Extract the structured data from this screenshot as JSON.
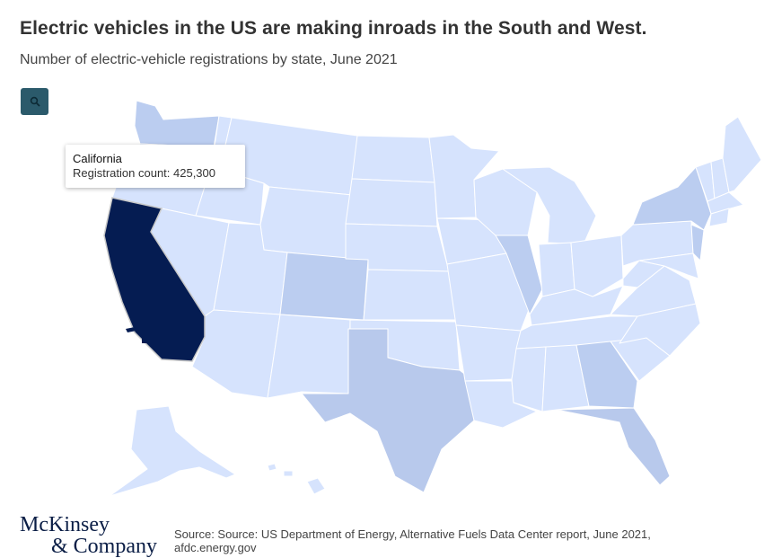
{
  "header": {
    "title": "Electric vehicles in the US are making inroads in the South and West.",
    "subtitle": "Number of electric-vehicle registrations by state, June 2021"
  },
  "controls": {
    "zoom_icon": "magnifier-icon"
  },
  "map": {
    "colors": {
      "lightest": "#d6e3fd",
      "light": "#bbcdf0",
      "medium": "#b8c9ec",
      "highlight": "#051c52",
      "border": "#ffffff"
    },
    "highlighted_state": "California"
  },
  "tooltip": {
    "state": "California",
    "text": "Registration count: 425,300"
  },
  "footer": {
    "logo_line1": "McKinsey",
    "logo_line2": "& Company",
    "source_line1": "Source: Source: US Department of Energy, Alternative Fuels Data Center report, June 2021,",
    "source_line2": "afdc.energy.gov"
  }
}
